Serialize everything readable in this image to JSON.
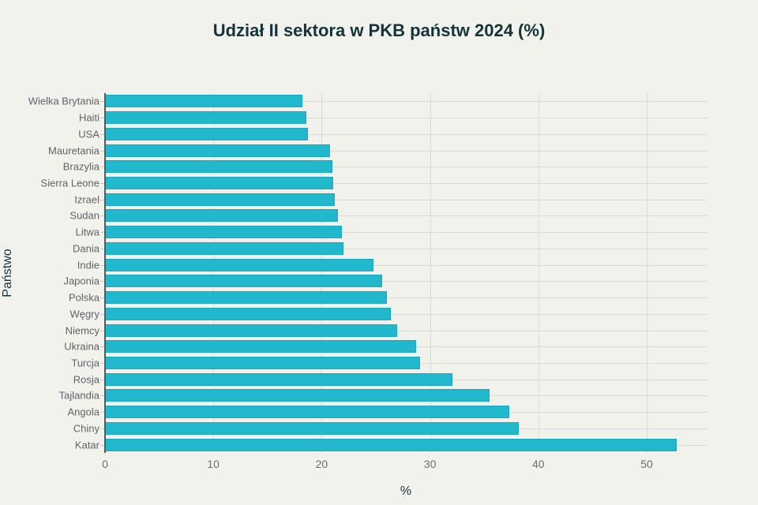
{
  "title": "Udział II sektora w PKB państw 2024 (%)",
  "xlabel": "%",
  "ylabel": "Państwo",
  "colors": {
    "bar": "#21b8cd",
    "background": "#f2f2ed",
    "title": "#13343b"
  },
  "chart_data": {
    "type": "bar",
    "orientation": "horizontal",
    "title": "Udział II sektora w PKB państw 2024 (%)",
    "xlabel": "%",
    "ylabel": "Państwo",
    "xlim": [
      0,
      55.5
    ],
    "xticks": [
      0,
      10,
      20,
      30,
      40,
      50
    ],
    "grid": true,
    "legend": null,
    "categories": [
      "Wielka Brytania",
      "Haiti",
      "USA",
      "Mauretania",
      "Brazylia",
      "Sierra Leone",
      "Izrael",
      "Sudan",
      "Litwa",
      "Dania",
      "Indie",
      "Japonia",
      "Polska",
      "Węgry",
      "Niemcy",
      "Ukraina",
      "Turcja",
      "Rosja",
      "Tajlandia",
      "Angola",
      "Chiny",
      "Katar"
    ],
    "values": [
      18.2,
      18.6,
      18.7,
      20.8,
      21.0,
      21.1,
      21.2,
      21.5,
      21.9,
      22.0,
      24.8,
      25.6,
      26.0,
      26.4,
      27.0,
      28.7,
      29.1,
      32.1,
      35.5,
      37.3,
      38.2,
      52.8
    ]
  }
}
